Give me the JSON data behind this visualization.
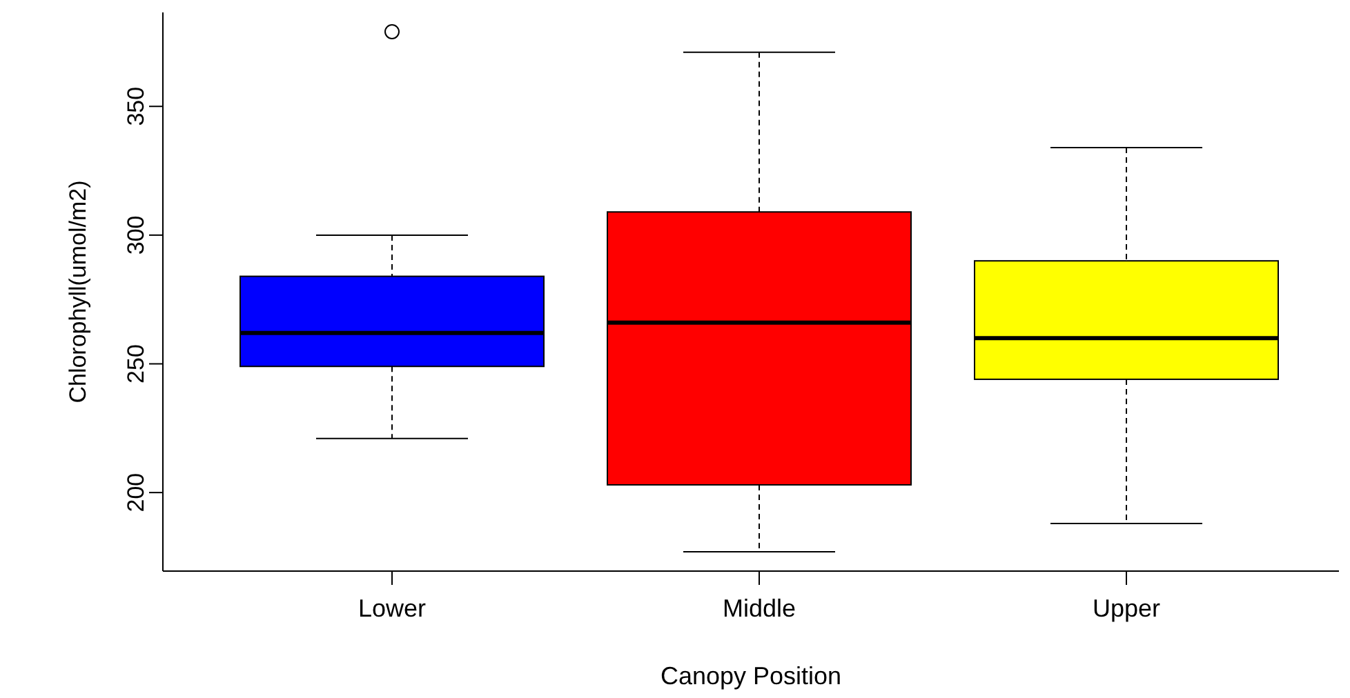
{
  "chart_data": {
    "type": "box",
    "xlabel": "Canopy Position",
    "ylabel": "Chlorophyll(umol/m2)",
    "categories": [
      "Lower",
      "Middle",
      "Upper"
    ],
    "colors": [
      "#0000ff",
      "#ff0000",
      "#ffff00"
    ],
    "boxes": [
      {
        "low": 221,
        "q1": 249,
        "median": 262,
        "q3": 284,
        "high": 300,
        "outliers": [
          379
        ]
      },
      {
        "low": 177,
        "q1": 203,
        "median": 266,
        "q3": 309,
        "high": 371
      },
      {
        "low": 188,
        "q1": 244,
        "median": 260,
        "q3": 290,
        "high": 334
      }
    ],
    "ylim": [
      169.5,
      386.5
    ],
    "yticks": [
      200,
      250,
      300,
      350
    ]
  }
}
